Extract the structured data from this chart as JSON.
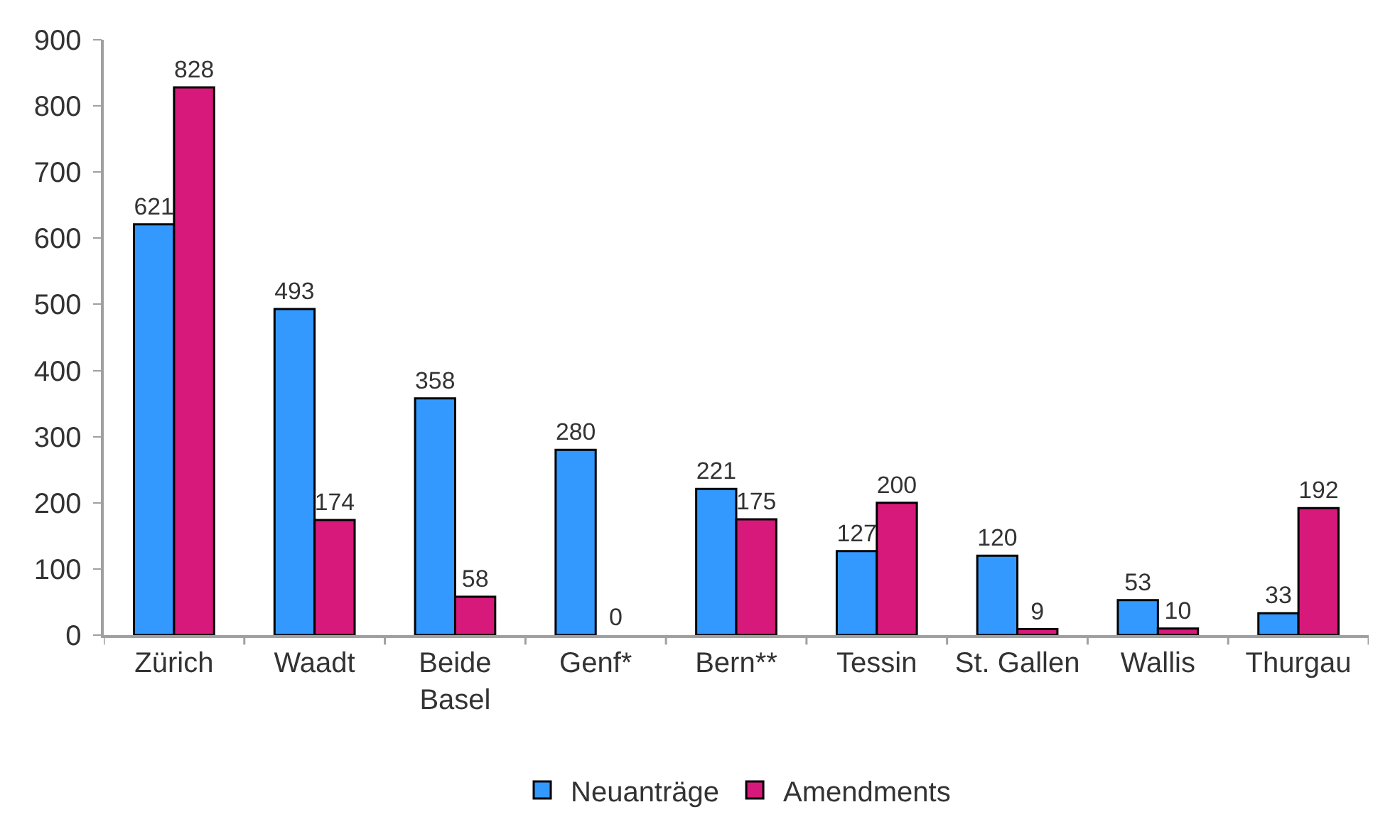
{
  "chart_data": {
    "type": "bar",
    "categories": [
      "Zürich",
      "Waadt",
      "Beide\nBasel",
      "Genf*",
      "Bern**",
      "Tessin",
      "St. Gallen",
      "Wallis",
      "Thurgau"
    ],
    "series": [
      {
        "name": "Neuanträge",
        "color": "#3399ff",
        "values": [
          621,
          493,
          358,
          280,
          221,
          127,
          120,
          53,
          33
        ]
      },
      {
        "name": "Amendments",
        "color": "#d6197a",
        "values": [
          828,
          174,
          58,
          0,
          175,
          200,
          9,
          10,
          192
        ]
      }
    ],
    "ylim": [
      0,
      900
    ],
    "yticks": [
      0,
      100,
      200,
      300,
      400,
      500,
      600,
      700,
      800,
      900
    ],
    "data_labels": true,
    "legend": "bottom"
  }
}
